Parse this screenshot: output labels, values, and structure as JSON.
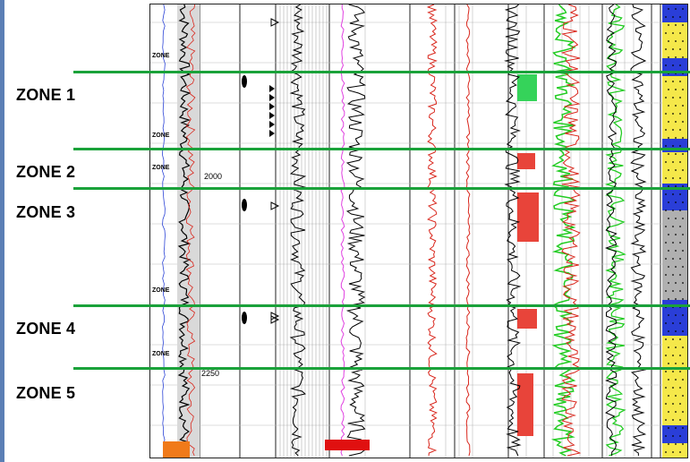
{
  "zones": [
    {
      "label": "ZONE 1"
    },
    {
      "label": "ZONE 2"
    },
    {
      "label": "ZONE 3"
    },
    {
      "label": "ZONE 4"
    },
    {
      "label": "ZONE 5"
    }
  ],
  "depth_labels": [
    "2000",
    "2250"
  ],
  "track_zone_tags": [
    "ZONE",
    "ZONE",
    "ZONE",
    "ZONE",
    "ZONE"
  ],
  "colors": {
    "zone_marker": "#1aa23a",
    "gamma_fill": "#d9d9d9",
    "pay_flag": "#e8443a",
    "pay_flag_green": "#35d35a",
    "curve_red": "#d9261c",
    "curve_magenta": "#e040e0",
    "curve_green": "#22cc22",
    "lithology_yellow": "#f5e84a",
    "lithology_blue": "#2a3ed8",
    "frame": "#5b7fb5"
  }
}
